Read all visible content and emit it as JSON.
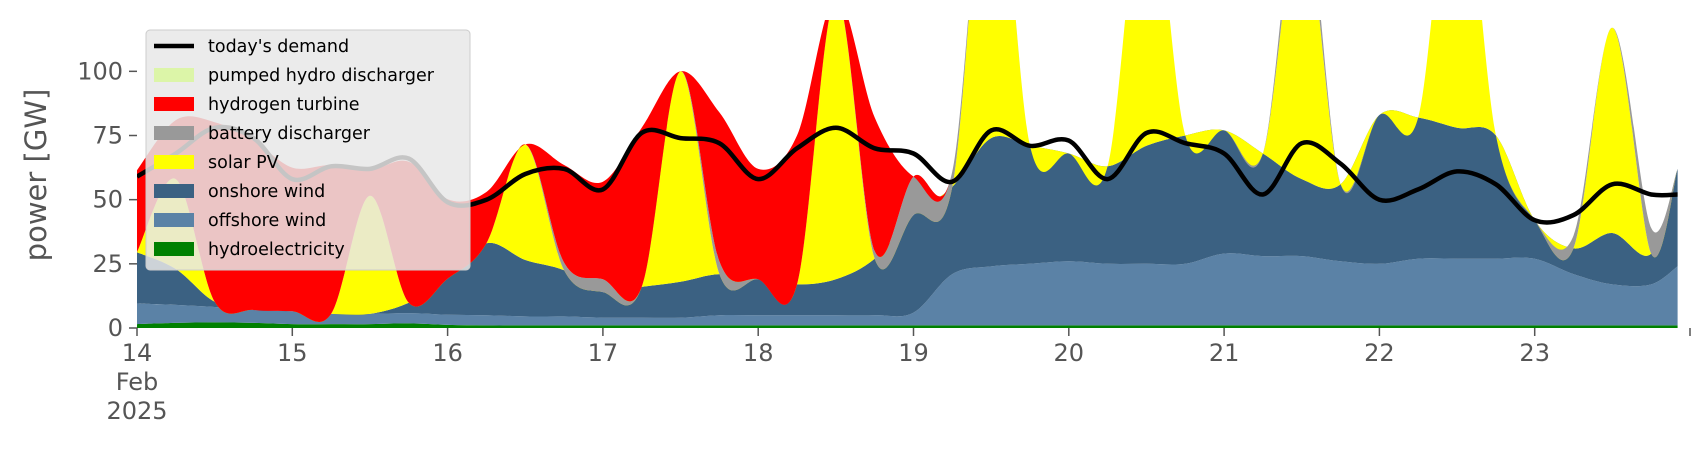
{
  "chart_data": {
    "type": "area",
    "ylabel": "power [GW]",
    "ylim": [
      0,
      120
    ],
    "xlim": [
      "2025-02-14T00:00",
      "2025-02-24T00:00"
    ],
    "y_ticks": [
      0,
      25,
      50,
      75,
      100
    ],
    "x_ticks": [
      {
        "at": "2025-02-14",
        "lines": [
          "14",
          "Feb",
          "2025"
        ]
      },
      {
        "at": "2025-02-15",
        "lines": [
          "15"
        ]
      },
      {
        "at": "2025-02-16",
        "lines": [
          "16"
        ]
      },
      {
        "at": "2025-02-17",
        "lines": [
          "17"
        ]
      },
      {
        "at": "2025-02-18",
        "lines": [
          "18"
        ]
      },
      {
        "at": "2025-02-19",
        "lines": [
          "19"
        ]
      },
      {
        "at": "2025-02-20",
        "lines": [
          "20"
        ]
      },
      {
        "at": "2025-02-21",
        "lines": [
          "21"
        ]
      },
      {
        "at": "2025-02-22",
        "lines": [
          "22"
        ]
      },
      {
        "at": "2025-02-23",
        "lines": [
          "23"
        ]
      }
    ],
    "legend": {
      "position": "upper left",
      "entries": [
        {
          "label": "today's demand",
          "color": "#000000",
          "kind": "line"
        },
        {
          "label": "pumped hydro discharger",
          "color": "#dcf5a8",
          "kind": "patch"
        },
        {
          "label": "hydrogen turbine",
          "color": "#ff0000",
          "kind": "patch"
        },
        {
          "label": "battery discharger",
          "color": "#999999",
          "kind": "patch"
        },
        {
          "label": "solar PV",
          "color": "#ffff00",
          "kind": "patch"
        },
        {
          "label": "onshore wind",
          "color": "#3b6182",
          "kind": "patch"
        },
        {
          "label": "offshore wind",
          "color": "#5b82a6",
          "kind": "patch"
        },
        {
          "label": "hydroelectricity",
          "color": "#008000",
          "kind": "patch"
        }
      ]
    },
    "x_days": [
      0,
      0.25,
      0.5,
      0.75,
      1,
      1.25,
      1.5,
      1.75,
      2,
      2.25,
      2.5,
      2.75,
      3,
      3.25,
      3.5,
      3.75,
      4,
      4.25,
      4.5,
      4.75,
      5,
      5.25,
      5.5,
      5.75,
      6,
      6.25,
      6.5,
      6.75,
      7,
      7.25,
      7.5,
      7.75,
      8,
      8.25,
      8.5,
      8.75,
      9,
      9.25,
      9.5,
      9.75,
      9.92
    ],
    "series": [
      {
        "name": "hydroelectricity",
        "color": "#008000",
        "values": [
          1.5,
          2,
          2.2,
          2,
          1.5,
          1.5,
          1.5,
          1.8,
          1.2,
          1,
          1,
          1,
          1,
          1,
          1,
          1,
          1,
          1,
          1,
          1,
          1,
          1,
          1,
          1,
          1,
          1,
          1,
          1,
          1,
          1,
          1,
          1,
          1,
          1,
          1,
          1,
          1,
          1,
          1,
          1,
          1
        ]
      },
      {
        "name": "offshore wind",
        "color": "#5b82a6",
        "values": [
          8,
          7,
          6,
          5,
          5,
          4,
          4,
          4,
          4,
          4,
          3.5,
          3.5,
          3,
          3,
          3,
          4,
          4,
          4,
          4,
          4,
          5,
          20,
          23,
          24,
          25,
          24,
          24,
          24,
          28,
          27,
          27,
          25,
          24,
          26,
          26,
          26,
          26,
          20,
          16,
          16,
          23
        ]
      },
      {
        "name": "onshore wind",
        "color": "#3b6182",
        "values": [
          20,
          14,
          2,
          0,
          0,
          0,
          0,
          4,
          14,
          28,
          22,
          18,
          10,
          12,
          14,
          16,
          14,
          12,
          14,
          22,
          38,
          34,
          50,
          46,
          42,
          38,
          46,
          50,
          48,
          40,
          30,
          30,
          58,
          55,
          51,
          48,
          15,
          10,
          20,
          12,
          38
        ]
      },
      {
        "name": "solar PV",
        "color": "#ffff00",
        "values": [
          0,
          35,
          0,
          0,
          0,
          0,
          46,
          0,
          0,
          0,
          45,
          0,
          0,
          0,
          82,
          0,
          0,
          0,
          110,
          0,
          0,
          0,
          125,
          0,
          0,
          0,
          110,
          0,
          0,
          0,
          105,
          0,
          0,
          0,
          115,
          0,
          0,
          0,
          80,
          0,
          0
        ]
      },
      {
        "name": "battery discharger",
        "color": "#999999",
        "values": [
          0,
          0,
          0,
          0,
          0,
          0,
          0,
          0,
          0,
          0,
          0,
          3,
          5,
          0,
          0,
          5,
          0,
          0,
          0,
          3,
          15,
          6,
          0,
          0,
          0,
          0,
          0,
          0,
          0,
          0,
          10,
          0,
          0,
          0,
          0,
          0,
          0,
          5,
          0,
          10,
          0
        ]
      },
      {
        "name": "hydrogen turbine",
        "color": "#ff0000",
        "values": [
          32,
          23,
          70,
          66,
          56,
          58,
          10,
          55,
          31,
          20,
          0,
          38,
          38,
          62,
          0,
          58,
          43,
          58,
          0,
          52,
          0,
          0,
          0,
          0,
          0,
          0,
          0,
          0,
          0,
          0,
          0,
          0,
          0,
          0,
          0,
          0,
          0,
          0,
          0,
          0,
          0
        ]
      },
      {
        "name": "pumped hydro discharger",
        "color": "#dcf5a8",
        "values": [
          0,
          0,
          0,
          0,
          0,
          0,
          0,
          0,
          0,
          0,
          0,
          0,
          0,
          0,
          0,
          0,
          0,
          0,
          0,
          0,
          0,
          0,
          0,
          0,
          0,
          0,
          0,
          0,
          0,
          0,
          0,
          0,
          0,
          0,
          0,
          0,
          0,
          0,
          0,
          0,
          0
        ]
      }
    ],
    "demand": {
      "name": "today's demand",
      "color": "#000000",
      "values": [
        59,
        68,
        78,
        74,
        58,
        63,
        62,
        66,
        49,
        50,
        60,
        62,
        54,
        76,
        74,
        72,
        58,
        70,
        78,
        70,
        68,
        57,
        77,
        71,
        73,
        58,
        76,
        72,
        68,
        52,
        72,
        64,
        50,
        54,
        61,
        56,
        42,
        44,
        56,
        52,
        52
      ]
    }
  }
}
